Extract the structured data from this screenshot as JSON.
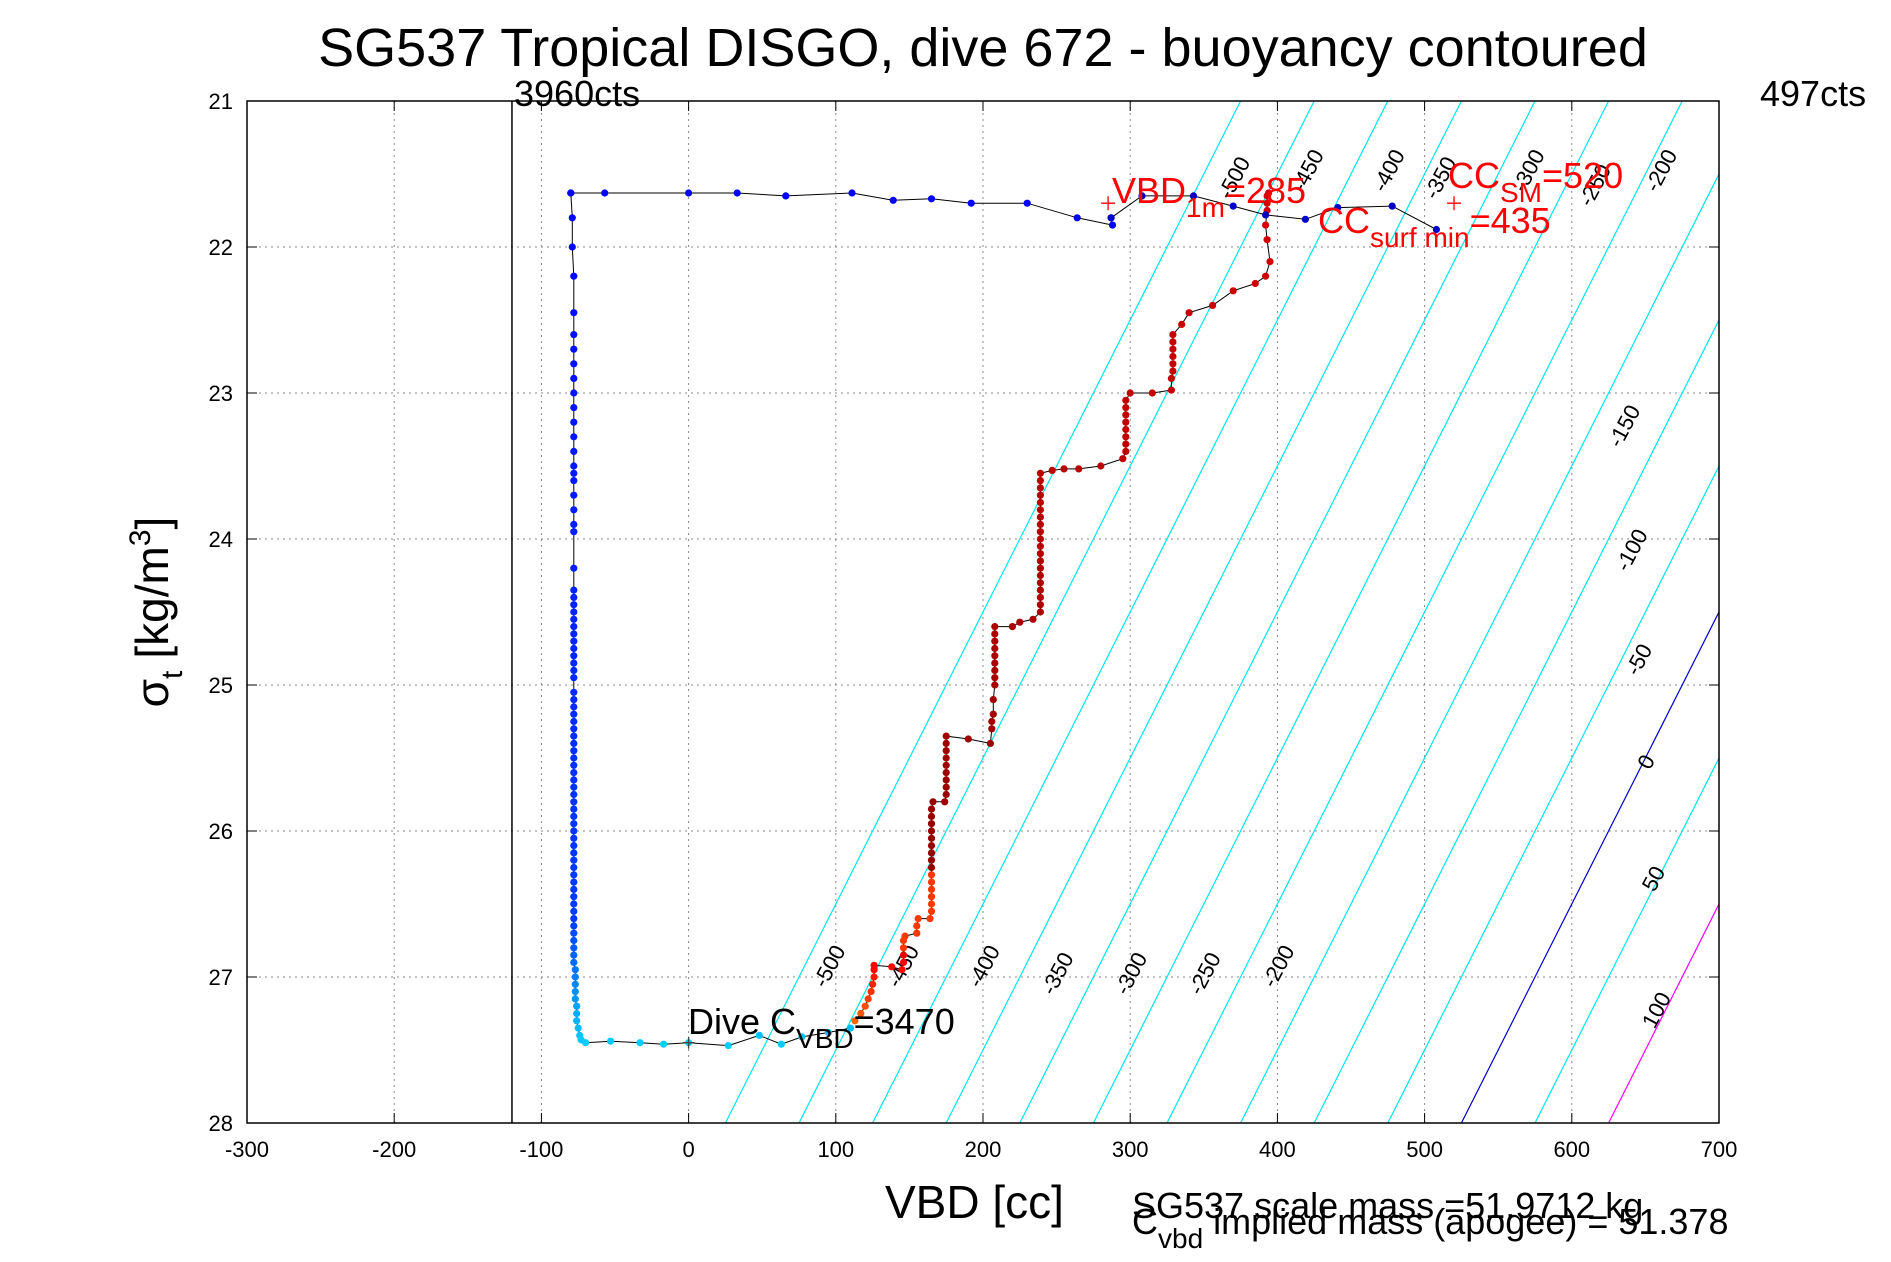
{
  "chart_data": {
    "type": "scatter",
    "title": "SG537 Tropical DISGO, dive 672 - buoyancy contoured",
    "xlabel": "VBD [cc]",
    "ylabel_main": "σ",
    "ylabel_sub": "t",
    "ylabel_units": "[kg/m",
    "ylabel_sup": "3",
    "ylabel_close": "]",
    "xlim": [
      -300,
      700
    ],
    "ylim": [
      28,
      21
    ],
    "xticks": [
      "-300",
      "-200",
      "-100",
      "0",
      "100",
      "200",
      "300",
      "400",
      "500",
      "600",
      "700"
    ],
    "yticks": [
      "21",
      "22",
      "23",
      "24",
      "25",
      "26",
      "27",
      "28"
    ],
    "grid": true,
    "top_left_label": "3960cts",
    "top_right_label": "497cts",
    "reference_line_x": -120,
    "annotations": {
      "vbd_1m": {
        "main": "VBD",
        "sub": "1m",
        "rest": "=285",
        "x": 285,
        "y": 21.7
      },
      "cc_sm": {
        "main": "CC",
        "sub": "SM",
        "rest": "=520",
        "x": 520,
        "y": 21.7
      },
      "cc_surf": {
        "main": "CC",
        "sub": "surf min",
        "rest": "=435"
      },
      "dive_c": {
        "main": "Dive C",
        "sub": "VBD",
        "rest": "=3470",
        "x": 0,
        "y": 27.45
      }
    },
    "footer_mass": "SG537 scale mass =51.9712 kg",
    "footer_cvbd_main": "C",
    "footer_cvbd_sub": "vbd",
    "footer_cvbd_rest": " implied mass (apogee) = 51.378",
    "contours": [
      {
        "level": "-500",
        "color": "#00e5ee",
        "x_at_top": 375
      },
      {
        "level": "-450",
        "color": "#00e5ee",
        "x_at_top": 425
      },
      {
        "level": "-400",
        "color": "#00e5ee",
        "x_at_top": 475
      },
      {
        "level": "-350",
        "color": "#00e5ee",
        "x_at_top": 525
      },
      {
        "level": "-300",
        "color": "#00e5ee",
        "x_at_top": 575
      },
      {
        "level": "-250",
        "color": "#00e5ee",
        "x_at_top": 625
      },
      {
        "level": "-200",
        "color": "#00e5ee",
        "x_at_top": 675
      },
      {
        "level": "-150",
        "color": "#00e5ee",
        "x_at_top": 725
      },
      {
        "level": "-100",
        "color": "#00e5ee",
        "x_at_top": 775
      },
      {
        "level": "-50",
        "color": "#00e5ee",
        "x_at_top": 825
      },
      {
        "level": "0",
        "color": "#0000cc",
        "x_at_top": 875
      },
      {
        "level": "50",
        "color": "#00e5ee",
        "x_at_top": 925
      },
      {
        "level": "100",
        "color": "#ff00ff",
        "x_at_top": 975
      }
    ],
    "contour_slope_cc_per_sigma": 50,
    "contour_labels_upper": [
      {
        "text": "-500",
        "x": 375,
        "y": 21.55
      },
      {
        "text": "-450",
        "x": 425,
        "y": 21.5
      },
      {
        "text": "-400",
        "x": 480,
        "y": 21.5
      },
      {
        "text": "-350",
        "x": 515,
        "y": 21.55
      },
      {
        "text": "-300",
        "x": 575,
        "y": 21.5
      },
      {
        "text": "-250",
        "x": 620,
        "y": 21.6
      },
      {
        "text": "-200",
        "x": 665,
        "y": 21.5
      },
      {
        "text": "-150",
        "x": 640,
        "y": 23.25
      },
      {
        "text": "-100",
        "x": 645,
        "y": 24.1
      },
      {
        "text": "-50",
        "x": 650,
        "y": 24.85
      },
      {
        "text": "0",
        "x": 655,
        "y": 25.55
      },
      {
        "text": "50",
        "x": 660,
        "y": 26.35
      },
      {
        "text": "100",
        "x": 662,
        "y": 27.25
      }
    ],
    "contour_labels_lower": [
      {
        "text": "-500",
        "x": 100,
        "y": 26.95
      },
      {
        "text": "-450",
        "x": 150,
        "y": 26.95
      },
      {
        "text": "-400",
        "x": 205,
        "y": 26.95
      },
      {
        "text": "-350",
        "x": 255,
        "y": 27.0
      },
      {
        "text": "-300",
        "x": 305,
        "y": 27.0
      },
      {
        "text": "-250",
        "x": 355,
        "y": 27.0
      },
      {
        "text": "-200",
        "x": 405,
        "y": 26.95
      }
    ],
    "series": [
      {
        "color_mode": "descent",
        "points": [
          [
            287,
            21.8
          ],
          [
            288,
            21.85
          ],
          [
            264,
            21.8
          ],
          [
            230,
            21.7
          ],
          [
            192,
            21.7
          ],
          [
            165,
            21.67
          ],
          [
            139,
            21.68
          ],
          [
            111,
            21.63
          ],
          [
            66,
            21.65
          ],
          [
            33,
            21.63
          ],
          [
            0,
            21.63
          ],
          [
            -57,
            21.63
          ],
          [
            -80,
            21.63
          ],
          [
            -80,
            21.63
          ],
          [
            -79,
            21.8
          ],
          [
            -79,
            22
          ],
          [
            -78,
            22.2
          ],
          [
            -78,
            22.45
          ],
          [
            -78,
            22.6
          ],
          [
            -78,
            22.7
          ],
          [
            -78,
            22.8
          ],
          [
            -78,
            22.9
          ],
          [
            -78,
            23.0
          ],
          [
            -78,
            23.1
          ],
          [
            -78,
            23.2
          ],
          [
            -78,
            23.3
          ],
          [
            -78,
            23.4
          ],
          [
            -78,
            23.5
          ],
          [
            -78,
            23.55
          ],
          [
            -78,
            23.6
          ],
          [
            -78,
            23.7
          ],
          [
            -78,
            23.8
          ],
          [
            -78,
            23.9
          ],
          [
            -78,
            23.95
          ],
          [
            -78,
            24.2
          ],
          [
            -78,
            24.35
          ],
          [
            -78,
            24.4
          ],
          [
            -78,
            24.45
          ],
          [
            -78,
            24.5
          ],
          [
            -78,
            24.55
          ],
          [
            -78,
            24.6
          ],
          [
            -78,
            24.65
          ],
          [
            -78,
            24.7
          ],
          [
            -78,
            24.75
          ],
          [
            -78,
            24.8
          ],
          [
            -78,
            24.85
          ],
          [
            -78,
            24.9
          ],
          [
            -78,
            24.95
          ],
          [
            -78,
            25.05
          ],
          [
            -78,
            25.1
          ],
          [
            -78,
            25.15
          ],
          [
            -78,
            25.2
          ],
          [
            -78,
            25.25
          ],
          [
            -78,
            25.3
          ],
          [
            -78,
            25.35
          ],
          [
            -78,
            25.4
          ],
          [
            -78,
            25.45
          ],
          [
            -78,
            25.5
          ],
          [
            -78,
            25.55
          ],
          [
            -78,
            25.6
          ],
          [
            -78,
            25.65
          ],
          [
            -78,
            25.7
          ],
          [
            -78,
            25.75
          ],
          [
            -78,
            25.8
          ],
          [
            -78,
            25.85
          ],
          [
            -78,
            25.9
          ],
          [
            -78,
            25.95
          ],
          [
            -78,
            26.0
          ],
          [
            -78,
            26.05
          ],
          [
            -78,
            26.1
          ],
          [
            -78,
            26.15
          ],
          [
            -78,
            26.2
          ],
          [
            -78,
            26.25
          ],
          [
            -78,
            26.3
          ],
          [
            -78,
            26.35
          ],
          [
            -78,
            26.4
          ],
          [
            -78,
            26.45
          ],
          [
            -78,
            26.5
          ],
          [
            -78,
            26.55
          ],
          [
            -78,
            26.6
          ],
          [
            -78,
            26.65
          ],
          [
            -78,
            26.7
          ],
          [
            -78,
            26.75
          ],
          [
            -78,
            26.8
          ],
          [
            -78,
            26.85
          ],
          [
            -78,
            26.9
          ],
          [
            -77,
            26.95
          ],
          [
            -77,
            27.0
          ],
          [
            -77,
            27.05
          ],
          [
            -77,
            27.1
          ],
          [
            -77,
            27.15
          ],
          [
            -76,
            27.2
          ],
          [
            -76,
            27.25
          ],
          [
            -76,
            27.3
          ],
          [
            -75,
            27.35
          ],
          [
            -74,
            27.4
          ],
          [
            -73,
            27.43
          ],
          [
            -70,
            27.45
          ],
          [
            -53,
            27.44
          ],
          [
            -33,
            27.45
          ],
          [
            -17,
            27.46
          ],
          [
            0,
            27.45
          ],
          [
            27,
            27.47
          ],
          [
            48,
            27.4
          ],
          [
            63,
            27.46
          ],
          [
            77,
            27.41
          ],
          [
            95,
            27.38
          ],
          [
            110,
            27.35
          ]
        ]
      },
      {
        "color_mode": "ascent",
        "points": [
          [
            113,
            27.3
          ],
          [
            117,
            27.25
          ],
          [
            120,
            27.2
          ],
          [
            122,
            27.15
          ],
          [
            124,
            27.1
          ],
          [
            125,
            27.05
          ],
          [
            126,
            27.0
          ],
          [
            126,
            26.95
          ],
          [
            126,
            26.92
          ],
          [
            138,
            26.93
          ],
          [
            145,
            26.95
          ],
          [
            146,
            26.9
          ],
          [
            146,
            26.85
          ],
          [
            146,
            26.8
          ],
          [
            146,
            26.75
          ],
          [
            147,
            26.72
          ],
          [
            155,
            26.7
          ],
          [
            155,
            26.65
          ],
          [
            156,
            26.6
          ],
          [
            164,
            26.6
          ],
          [
            165,
            26.55
          ],
          [
            165,
            26.5
          ],
          [
            165,
            26.45
          ],
          [
            165,
            26.4
          ],
          [
            165,
            26.35
          ],
          [
            165,
            26.3
          ],
          [
            165,
            26.25
          ],
          [
            165,
            26.2
          ],
          [
            165,
            26.15
          ],
          [
            165,
            26.1
          ],
          [
            165,
            26.05
          ],
          [
            165,
            26.0
          ],
          [
            165,
            25.95
          ],
          [
            165,
            25.9
          ],
          [
            165,
            25.85
          ],
          [
            166,
            25.8
          ],
          [
            174,
            25.8
          ],
          [
            175,
            25.75
          ],
          [
            175,
            25.7
          ],
          [
            175,
            25.65
          ],
          [
            175,
            25.6
          ],
          [
            175,
            25.55
          ],
          [
            175,
            25.5
          ],
          [
            175,
            25.45
          ],
          [
            175,
            25.4
          ],
          [
            175,
            25.35
          ],
          [
            190,
            25.37
          ],
          [
            205,
            25.4
          ],
          [
            206,
            25.3
          ],
          [
            206,
            25.25
          ],
          [
            207,
            25.2
          ],
          [
            207,
            25.1
          ],
          [
            208,
            25.0
          ],
          [
            208,
            24.95
          ],
          [
            208,
            24.9
          ],
          [
            208,
            24.85
          ],
          [
            208,
            24.8
          ],
          [
            208,
            24.75
          ],
          [
            208,
            24.7
          ],
          [
            208,
            24.65
          ],
          [
            208,
            24.6
          ],
          [
            220,
            24.6
          ],
          [
            225,
            24.57
          ],
          [
            234,
            24.55
          ],
          [
            239,
            24.5
          ],
          [
            239,
            24.45
          ],
          [
            239,
            24.4
          ],
          [
            239,
            24.35
          ],
          [
            239,
            24.3
          ],
          [
            239,
            24.25
          ],
          [
            239,
            24.2
          ],
          [
            239,
            24.15
          ],
          [
            239,
            24.1
          ],
          [
            239,
            24.05
          ],
          [
            239,
            24.0
          ],
          [
            239,
            23.95
          ],
          [
            239,
            23.9
          ],
          [
            239,
            23.85
          ],
          [
            239,
            23.8
          ],
          [
            239,
            23.75
          ],
          [
            239,
            23.7
          ],
          [
            239,
            23.65
          ],
          [
            239,
            23.6
          ],
          [
            239,
            23.55
          ],
          [
            247,
            23.53
          ],
          [
            255,
            23.52
          ],
          [
            265,
            23.52
          ],
          [
            280,
            23.5
          ],
          [
            295,
            23.45
          ],
          [
            297,
            23.4
          ],
          [
            297,
            23.35
          ],
          [
            297,
            23.3
          ],
          [
            297,
            23.25
          ],
          [
            297,
            23.2
          ],
          [
            297,
            23.15
          ],
          [
            297,
            23.1
          ],
          [
            297,
            23.05
          ],
          [
            300,
            23.0
          ],
          [
            315,
            23.0
          ],
          [
            328,
            22.98
          ],
          [
            328,
            22.9
          ],
          [
            329,
            22.85
          ],
          [
            329,
            22.8
          ],
          [
            329,
            22.75
          ],
          [
            329,
            22.7
          ],
          [
            329,
            22.65
          ],
          [
            329,
            22.6
          ],
          [
            335,
            22.53
          ],
          [
            340,
            22.45
          ],
          [
            356,
            22.4
          ],
          [
            370,
            22.3
          ],
          [
            385,
            22.25
          ],
          [
            392,
            22.2
          ],
          [
            395,
            22.1
          ],
          [
            393,
            21.95
          ],
          [
            392,
            21.85
          ],
          [
            393,
            21.75
          ],
          [
            393,
            21.7
          ],
          [
            393,
            21.65
          ],
          [
            394,
            21.63
          ]
        ]
      },
      {
        "color_mode": "surface",
        "points": [
          [
            287,
            21.8
          ],
          [
            308,
            21.65
          ],
          [
            343,
            21.65
          ],
          [
            370,
            21.72
          ],
          [
            392,
            21.78
          ],
          [
            419,
            21.81
          ],
          [
            441,
            21.73
          ],
          [
            478,
            21.72
          ],
          [
            508,
            21.88
          ]
        ]
      }
    ]
  }
}
